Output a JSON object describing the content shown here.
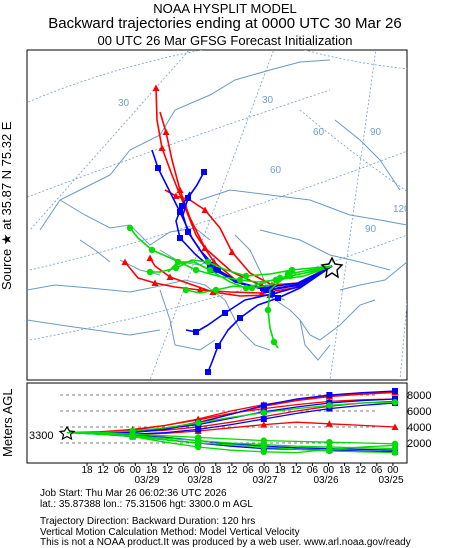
{
  "header": {
    "model_title": "NOAA HYSPLIT MODEL",
    "subtitle": "Backward trajectories ending at 0000 UTC 30 Mar 26",
    "meteo_line": "00 UTC 26 Mar    GFSG  Forecast Initialization"
  },
  "map": {
    "source_label": "Source ★ at   35.87 N   75.32 E",
    "graticule_labels": [
      "30",
      "60",
      "90",
      "120",
      "30",
      "60",
      "90"
    ],
    "colors": {
      "land": "#6b9ac4",
      "graticule": "#6f9fd0",
      "red": "#ff0000",
      "blue": "#0000ff",
      "green": "#00dd00"
    }
  },
  "vertical": {
    "ylabel": "Meters AGL",
    "start_height_label": "3300",
    "ytick_labels": [
      "8000",
      "6000",
      "4000",
      "2000"
    ],
    "hour_labels": [
      "18",
      "12",
      "06",
      "00",
      "18",
      "12",
      "06",
      "00",
      "18",
      "12",
      "06",
      "00",
      "18",
      "12",
      "06",
      "00",
      "18",
      "12",
      "06",
      "00"
    ],
    "date_labels": [
      "03/29",
      "03/28",
      "03/27",
      "03/26",
      "03/25"
    ]
  },
  "footer": {
    "job_start": "Job Start: Thu Mar 26 06:02:36 UTC 2026",
    "location": "lat.: 35.87388   lon.: 75.31506    hgt: 3300.0 m AGL",
    "blank": "",
    "direction": "Trajectory Direction: Backward       Duration: 120 hrs",
    "vertical_method": "Vertical Motion Calculation Method: Model Vertical Velocity",
    "disclaimer": "This is not a NOAA product.It was produced by a web user. www.arl.noaa.gov/ready"
  }
}
